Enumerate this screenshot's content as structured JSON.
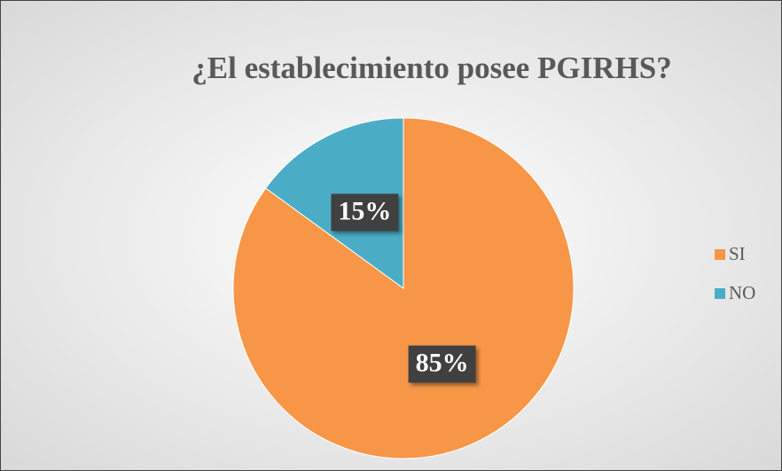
{
  "chart_data": {
    "type": "pie",
    "title": "¿El establecimiento posee PGIRHS?",
    "categories": [
      "SI",
      "NO"
    ],
    "values": [
      85,
      15
    ],
    "value_labels": [
      "85%",
      "15%"
    ],
    "colors": [
      "#f79646",
      "#4bacc6"
    ],
    "legend": "right"
  }
}
